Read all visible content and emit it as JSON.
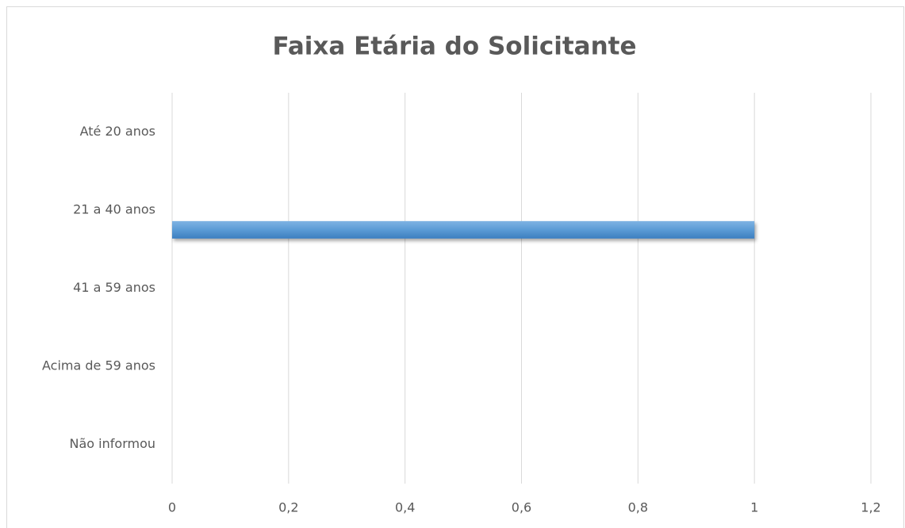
{
  "chart_data": {
    "type": "barh",
    "title": "Faixa Etária do Solicitante",
    "categories": [
      "Até 20 anos",
      "21 a 40 anos",
      "41 a 59 anos",
      "Acima de 59 anos",
      "Não informou"
    ],
    "values": [
      0,
      1,
      0,
      0,
      0
    ],
    "color": "#5b9bd5",
    "xlim": [
      0,
      1.2
    ],
    "xticks": [
      0,
      {
        "value": 0.2,
        "label": "0,2"
      },
      {
        "value": 0.4,
        "label": "0,4"
      },
      {
        "value": 0.6,
        "label": "0,6"
      },
      {
        "value": 0.8,
        "label": "0,8"
      },
      1,
      {
        "value": 1.2,
        "label": "1,2"
      }
    ],
    "grid": true
  }
}
